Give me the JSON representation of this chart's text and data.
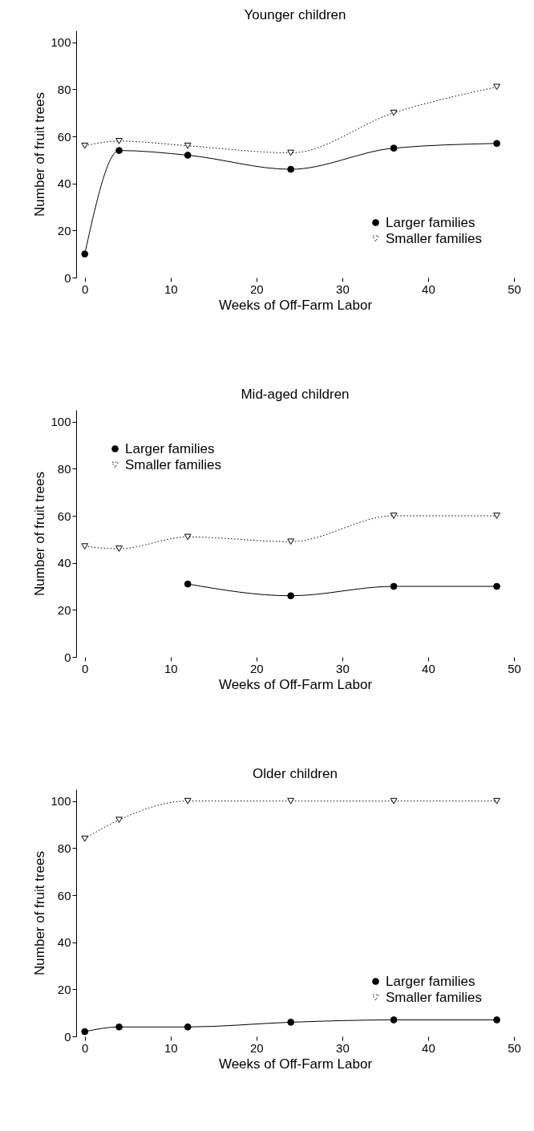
{
  "chart_data": [
    {
      "type": "line",
      "title": "Younger children",
      "xlabel": "Weeks of Off-Farm Labor",
      "ylabel": "Number of fruit trees",
      "x": [
        0,
        4,
        12,
        24,
        36,
        48
      ],
      "xlim": [
        -1,
        50
      ],
      "xticks": [
        0,
        10,
        20,
        30,
        40,
        50
      ],
      "ylim": [
        0,
        105
      ],
      "yticks": [
        0,
        20,
        40,
        60,
        80,
        100
      ],
      "grid": false,
      "legend": "bottom right",
      "series": [
        {
          "name": "Larger families",
          "color": "#000000",
          "marker": "circle",
          "line_style": "solid",
          "values": [
            10,
            54,
            52,
            46,
            55,
            57
          ]
        },
        {
          "name": "Smaller families",
          "color": "#000000",
          "marker": "triangle",
          "line_style": "dotted",
          "values": [
            56,
            58,
            56,
            53,
            70,
            81
          ]
        }
      ]
    },
    {
      "type": "line",
      "title": "Mid-aged children",
      "xlabel": "Weeks of Off-Farm Labor",
      "ylabel": "Number of fruit trees",
      "x": [
        0,
        4,
        12,
        24,
        36,
        48
      ],
      "xlim": [
        -1,
        50
      ],
      "xticks": [
        0,
        10,
        20,
        30,
        40,
        50
      ],
      "ylim": [
        0,
        105
      ],
      "yticks": [
        0,
        20,
        40,
        60,
        80,
        100
      ],
      "grid": false,
      "legend": "top left",
      "series": [
        {
          "name": "Larger families",
          "color": "#000000",
          "marker": "circle",
          "line_style": "solid",
          "values": [
            null,
            null,
            31,
            26,
            30,
            30
          ]
        },
        {
          "name": "Smaller families",
          "color": "#000000",
          "marker": "triangle",
          "line_style": "dotted",
          "values": [
            47,
            46,
            51,
            49,
            60,
            60
          ]
        }
      ]
    },
    {
      "type": "line",
      "title": "Older children",
      "xlabel": "Weeks of Off-Farm Labor",
      "ylabel": "Number of fruit trees",
      "x": [
        0,
        4,
        12,
        24,
        36,
        48
      ],
      "xlim": [
        -1,
        50
      ],
      "xticks": [
        0,
        10,
        20,
        30,
        40,
        50
      ],
      "ylim": [
        0,
        105
      ],
      "yticks": [
        0,
        20,
        40,
        60,
        80,
        100
      ],
      "grid": false,
      "legend": "bottom right",
      "series": [
        {
          "name": "Larger families",
          "color": "#000000",
          "marker": "circle",
          "line_style": "solid",
          "values": [
            2,
            4,
            4,
            6,
            7,
            7
          ]
        },
        {
          "name": "Smaller families",
          "color": "#000000",
          "marker": "triangle",
          "line_style": "dotted",
          "values": [
            84,
            92,
            100,
            100,
            100,
            100
          ]
        }
      ]
    }
  ]
}
